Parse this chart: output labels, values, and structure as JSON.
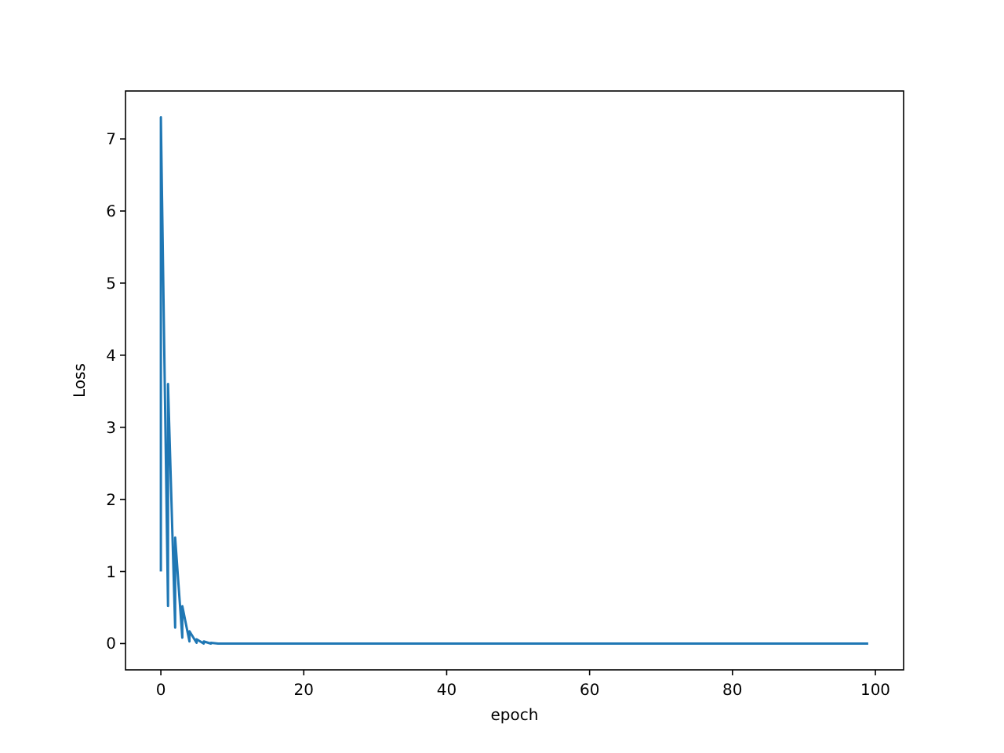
{
  "chart_data": {
    "type": "line",
    "xlabel": "epoch",
    "ylabel": "Loss",
    "x": [
      0,
      0,
      1,
      1,
      2,
      2,
      3,
      3,
      4,
      4,
      5,
      5,
      6,
      6,
      7,
      7,
      8,
      10,
      20,
      40,
      60,
      80,
      99
    ],
    "series": [
      {
        "color": "#1f77b4",
        "values": [
          1.0,
          7.3,
          0.52,
          3.6,
          0.22,
          1.47,
          0.08,
          0.52,
          0.03,
          0.17,
          0.01,
          0.06,
          0.0,
          0.03,
          0.0,
          0.01,
          0.0,
          0,
          0,
          0,
          0,
          0,
          0
        ]
      }
    ],
    "xlim": [
      -4.95,
      103.95
    ],
    "ylim": [
      -0.365,
      7.665
    ],
    "xticks": [
      0,
      20,
      40,
      60,
      80,
      100
    ],
    "yticks": [
      0,
      1,
      2,
      3,
      4,
      5,
      6,
      7
    ],
    "grid": false
  }
}
